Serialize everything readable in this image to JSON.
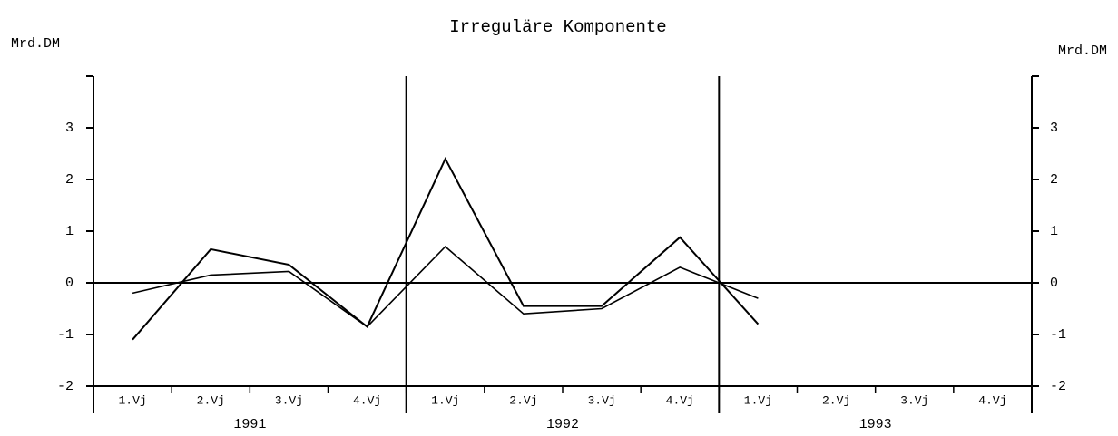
{
  "chart_data": {
    "type": "line",
    "title": "Irreguläre Komponente",
    "y_label": "Mrd.DM",
    "y2_label": "Mrd.DM",
    "categories": [
      "1.Vj",
      "2.Vj",
      "3.Vj",
      "4.Vj",
      "1.Vj",
      "2.Vj",
      "3.Vj",
      "4.Vj",
      "1.Vj",
      "2.Vj",
      "3.Vj",
      "4.Vj"
    ],
    "years": [
      "1991",
      "1992",
      "1993"
    ],
    "series": [
      {
        "color": "#000000",
        "values": [
          -1.1,
          0.65,
          0.35,
          -0.85,
          2.4,
          -0.45,
          -0.45,
          0.88,
          -0.8,
          null,
          null,
          null
        ]
      },
      {
        "color": "#000000",
        "values": [
          -0.2,
          0.15,
          0.22,
          -0.85,
          0.7,
          -0.6,
          -0.5,
          0.3,
          -0.3,
          null,
          null,
          null
        ]
      }
    ],
    "ylim": [
      -2,
      4
    ],
    "yticks": [
      -2,
      -1,
      0,
      1,
      2,
      3
    ],
    "y2lim": [
      -2,
      4
    ],
    "y2ticks": [
      -2,
      -1,
      0,
      1,
      2,
      3
    ]
  }
}
